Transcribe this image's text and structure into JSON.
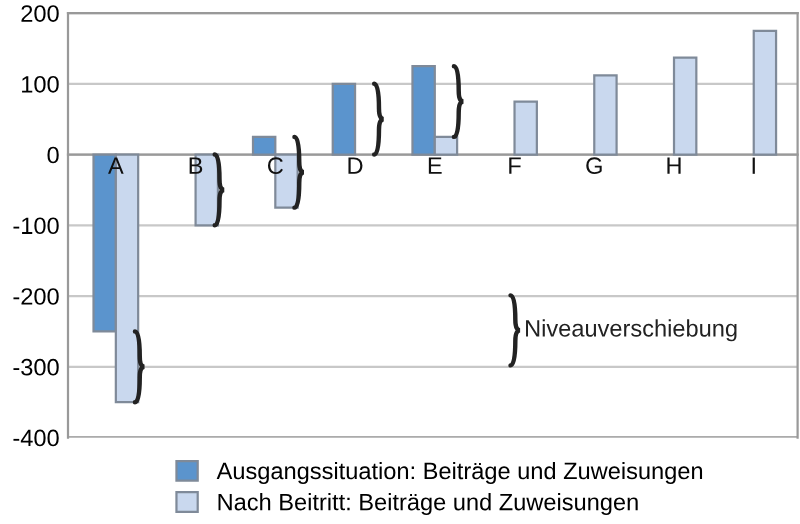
{
  "chart_data": {
    "type": "bar",
    "categories": [
      "A",
      "B",
      "C",
      "D",
      "E",
      "F",
      "G",
      "H",
      "I"
    ],
    "series": [
      {
        "name": "Ausgangssituation: Beiträge und Zuweisungen",
        "color": "#5b94cd",
        "values": [
          -250,
          null,
          25,
          100,
          125,
          null,
          null,
          null,
          null
        ]
      },
      {
        "name": "Nach Beitritt: Beiträge und Zuweisungen",
        "color": "#c9d8ee",
        "values": [
          -350,
          -100,
          -75,
          null,
          25,
          75,
          112,
          137,
          175
        ]
      }
    ],
    "ylim": [
      -400,
      200
    ],
    "yticks": [
      -400,
      -300,
      -200,
      -100,
      0,
      100,
      200
    ],
    "grid": "y",
    "legend": "bottom",
    "annotations": [
      "Niveauverschiebung"
    ]
  }
}
